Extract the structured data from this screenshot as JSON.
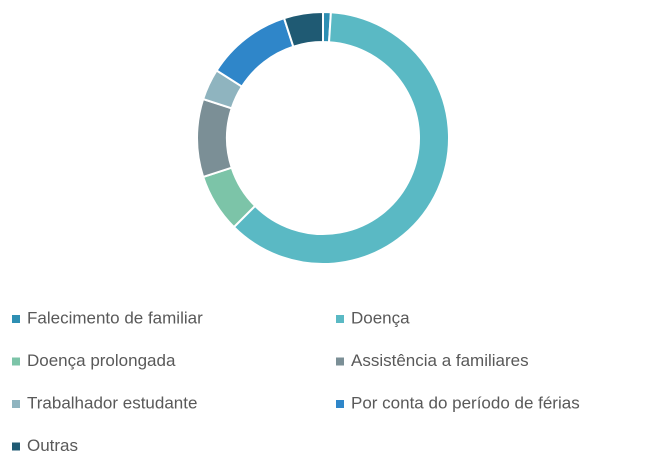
{
  "chart_data": {
    "type": "donut",
    "categories": [
      "Falecimento de familiar",
      "Doença",
      "Doença prolongada",
      "Assistência a familiares",
      "Trabalhador estudante",
      "Por conta do período de férias",
      "Outras"
    ],
    "values": [
      1,
      61.5,
      7.5,
      10,
      4,
      11,
      5
    ],
    "colors": [
      "#2e8fb3",
      "#5ab9c4",
      "#7cc4a8",
      "#7b8f96",
      "#8fb4bf",
      "#2f86c9",
      "#1f5a73"
    ],
    "legend": "bottom"
  }
}
